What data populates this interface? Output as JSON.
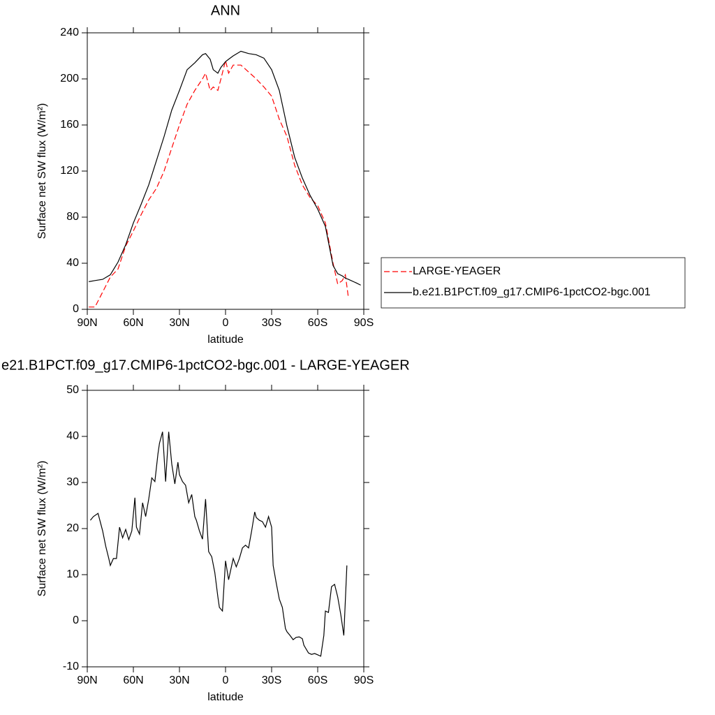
{
  "chart_data": [
    {
      "type": "line",
      "title": "ANN",
      "x_label": "latitude",
      "y_label": "Surface net SW flux (W/m²)",
      "x": [
        89,
        85,
        80,
        75,
        70,
        65,
        60,
        55,
        50,
        45,
        40,
        35,
        30,
        25,
        20,
        15,
        13,
        10,
        8,
        5,
        3,
        0,
        -2,
        -5,
        -10,
        -15,
        -20,
        -25,
        -30,
        -35,
        -40,
        -45,
        -50,
        -55,
        -60,
        -65,
        -70,
        -73,
        -76,
        -78,
        -80,
        -85,
        -88
      ],
      "series": [
        {
          "name": "LARGE-YEAGER",
          "color": "#ff0000",
          "style": "dashed",
          "values": [
            2,
            2,
            15,
            28,
            35,
            55,
            68,
            82,
            95,
            105,
            120,
            140,
            160,
            178,
            190,
            200,
            205,
            190,
            193,
            190,
            200,
            216,
            205,
            212,
            212,
            206,
            200,
            193,
            185,
            165,
            150,
            125,
            108,
            97,
            90,
            75,
            40,
            22,
            25,
            30,
            10,
            null,
            null
          ]
        },
        {
          "name": "b.e21.B1PCT.f09_g17.CMIP6-1pctCO2-bgc.001",
          "color": "#000000",
          "style": "solid",
          "values": [
            24,
            25,
            26,
            30,
            41,
            56,
            75,
            91,
            108,
            129,
            150,
            173,
            190,
            208,
            214,
            221,
            222,
            217,
            208,
            205,
            210,
            215,
            217,
            220,
            224,
            222,
            221,
            218,
            208,
            190,
            159,
            132,
            114,
            99,
            87,
            72,
            38,
            31,
            29,
            27,
            26,
            23,
            21
          ]
        }
      ],
      "xlim": [
        90,
        -90
      ],
      "xticks": [
        {
          "value": 90,
          "label": "90N"
        },
        {
          "value": 60,
          "label": "60N"
        },
        {
          "value": 30,
          "label": "30N"
        },
        0,
        {
          "value": -30,
          "label": "30S"
        },
        {
          "value": -60,
          "label": "60S"
        },
        {
          "value": -90,
          "label": "90S"
        }
      ],
      "ylim": [
        0,
        240
      ],
      "yticks": [
        0,
        40,
        80,
        120,
        160,
        200,
        240
      ],
      "legend": "right"
    },
    {
      "type": "line",
      "title": "e21.B1PCT.f09_g17.CMIP6-1pctCO2-bgc.001 - LARGE-YEAGER",
      "x_label": "latitude",
      "y_label": "Surface net SW flux (W/m²)",
      "x": [
        88,
        86,
        83,
        80,
        78,
        76,
        75,
        73,
        71,
        69,
        67,
        65,
        63,
        61,
        59,
        58,
        56,
        54,
        52,
        50,
        48,
        46,
        44,
        43,
        41,
        39,
        37,
        35,
        33,
        31,
        30,
        28,
        26,
        24,
        22,
        20,
        19,
        17,
        15,
        13,
        11,
        9,
        7,
        5,
        4,
        2,
        0,
        -2,
        -5,
        -7,
        -9,
        -11,
        -13,
        -15,
        -17,
        -19,
        -20,
        -22,
        -24,
        -26,
        -28,
        -30,
        -31,
        -33,
        -35,
        -37,
        -39,
        -40,
        -42,
        -44,
        -46,
        -48,
        -50,
        -51,
        -54,
        -56,
        -58,
        -60,
        -62,
        -64,
        -65,
        -67,
        -69,
        -71,
        -73,
        -75,
        -77,
        -79
      ],
      "series": [
        {
          "color": "#000000",
          "style": "solid",
          "values": [
            21.8,
            22.6,
            23.3,
            19.5,
            16.2,
            13.5,
            12,
            13.5,
            13.5,
            20.3,
            18,
            19.8,
            17.6,
            19.5,
            26.7,
            20.3,
            18.8,
            25.6,
            22.6,
            26.4,
            31,
            30.2,
            36.2,
            38.5,
            41,
            30.2,
            41,
            34,
            29.7,
            34.4,
            31.7,
            30.2,
            29.4,
            25.6,
            27.4,
            22.6,
            21.8,
            19.5,
            17.7,
            26.4,
            15,
            13.9,
            10.5,
            5.2,
            2.9,
            2.1,
            13,
            8.9,
            13.5,
            11.7,
            13.5,
            15.8,
            16.4,
            15.8,
            19.5,
            23.6,
            22.4,
            21.8,
            21.5,
            20.3,
            22.6,
            20.3,
            12,
            8.2,
            4.7,
            2.9,
            -1.7,
            -2.4,
            -3.2,
            -4.1,
            -3.6,
            -3.5,
            -3.9,
            -5.3,
            -7,
            -7.3,
            -7.1,
            -7.4,
            -7.7,
            -3.2,
            2.1,
            1.8,
            7.4,
            7.9,
            5.2,
            1.4,
            -3.2,
            12
          ]
        }
      ],
      "xlim": [
        90,
        -90
      ],
      "xticks": [
        {
          "value": 90,
          "label": "90N"
        },
        {
          "value": 60,
          "label": "60N"
        },
        {
          "value": 30,
          "label": "30N"
        },
        0,
        {
          "value": -30,
          "label": "30S"
        },
        {
          "value": -60,
          "label": "60S"
        },
        {
          "value": -90,
          "label": "90S"
        }
      ],
      "ylim": [
        -10,
        50
      ],
      "yticks": [
        -10,
        0,
        10,
        20,
        30,
        40,
        50
      ]
    }
  ]
}
